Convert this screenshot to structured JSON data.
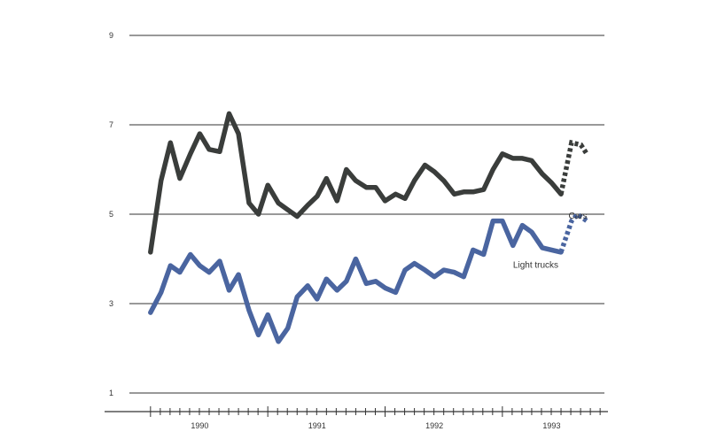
{
  "chart_data": {
    "type": "line",
    "title": "",
    "xlabel": "",
    "ylabel": "",
    "ylim": [
      1,
      9
    ],
    "y_ticks": [
      1,
      3,
      5,
      7,
      9
    ],
    "grid": true,
    "x_range": [
      1989.4,
      1993.45
    ],
    "x_year_labels": [
      {
        "label": "1990",
        "x": 1990.0
      },
      {
        "label": "1991",
        "x": 1991.0
      },
      {
        "label": "1992",
        "x": 1992.0
      },
      {
        "label": "1993",
        "x": 1993.0
      }
    ],
    "series": [
      {
        "name": "Cars",
        "label": "Cars",
        "color": "#3a3d3b",
        "values": [
          [
            1989.58,
            4.15
          ],
          [
            1989.67,
            5.75
          ],
          [
            1989.75,
            6.6
          ],
          [
            1989.83,
            5.8
          ],
          [
            1989.92,
            6.35
          ],
          [
            1990.0,
            6.8
          ],
          [
            1990.08,
            6.45
          ],
          [
            1990.17,
            6.4
          ],
          [
            1990.25,
            7.25
          ],
          [
            1990.33,
            6.8
          ],
          [
            1990.42,
            5.25
          ],
          [
            1990.5,
            5.0
          ],
          [
            1990.58,
            5.65
          ],
          [
            1990.67,
            5.25
          ],
          [
            1990.75,
            5.1
          ],
          [
            1990.83,
            4.95
          ],
          [
            1990.92,
            5.2
          ],
          [
            1991.0,
            5.4
          ],
          [
            1991.08,
            5.8
          ],
          [
            1991.17,
            5.3
          ],
          [
            1991.25,
            6.0
          ],
          [
            1991.33,
            5.75
          ],
          [
            1991.42,
            5.6
          ],
          [
            1991.5,
            5.6
          ],
          [
            1991.58,
            5.3
          ],
          [
            1991.67,
            5.45
          ],
          [
            1991.75,
            5.35
          ],
          [
            1991.83,
            5.75
          ],
          [
            1991.92,
            6.1
          ],
          [
            1992.0,
            5.95
          ],
          [
            1992.08,
            5.75
          ],
          [
            1992.17,
            5.45
          ],
          [
            1992.25,
            5.5
          ],
          [
            1992.33,
            5.5
          ],
          [
            1992.42,
            5.55
          ],
          [
            1992.5,
            6.0
          ],
          [
            1992.58,
            6.35
          ],
          [
            1992.67,
            6.25
          ],
          [
            1992.75,
            6.25
          ],
          [
            1992.83,
            6.2
          ],
          [
            1992.92,
            5.9
          ],
          [
            1993.0,
            5.7
          ],
          [
            1993.08,
            5.45
          ]
        ],
        "forecast": [
          [
            1993.08,
            5.45
          ],
          [
            1993.17,
            6.6
          ],
          [
            1993.25,
            6.55
          ],
          [
            1993.3,
            6.35
          ]
        ]
      },
      {
        "name": "Light trucks",
        "label": "Light trucks",
        "color": "#4a65a0",
        "values": [
          [
            1989.58,
            2.8
          ],
          [
            1989.67,
            3.25
          ],
          [
            1989.75,
            3.85
          ],
          [
            1989.83,
            3.7
          ],
          [
            1989.92,
            4.1
          ],
          [
            1990.0,
            3.85
          ],
          [
            1990.08,
            3.7
          ],
          [
            1990.17,
            3.95
          ],
          [
            1990.25,
            3.3
          ],
          [
            1990.33,
            3.65
          ],
          [
            1990.42,
            2.85
          ],
          [
            1990.5,
            2.3
          ],
          [
            1990.58,
            2.75
          ],
          [
            1990.67,
            2.15
          ],
          [
            1990.75,
            2.45
          ],
          [
            1990.83,
            3.15
          ],
          [
            1990.92,
            3.4
          ],
          [
            1991.0,
            3.1
          ],
          [
            1991.08,
            3.55
          ],
          [
            1991.17,
            3.3
          ],
          [
            1991.25,
            3.5
          ],
          [
            1991.33,
            4.0
          ],
          [
            1991.42,
            3.45
          ],
          [
            1991.5,
            3.5
          ],
          [
            1991.58,
            3.35
          ],
          [
            1991.67,
            3.25
          ],
          [
            1991.75,
            3.75
          ],
          [
            1991.83,
            3.9
          ],
          [
            1991.92,
            3.75
          ],
          [
            1992.0,
            3.6
          ],
          [
            1992.08,
            3.75
          ],
          [
            1992.17,
            3.7
          ],
          [
            1992.25,
            3.6
          ],
          [
            1992.33,
            4.2
          ],
          [
            1992.42,
            4.1
          ],
          [
            1992.5,
            4.85
          ],
          [
            1992.58,
            4.85
          ],
          [
            1992.67,
            4.3
          ],
          [
            1992.75,
            4.75
          ],
          [
            1992.83,
            4.6
          ],
          [
            1992.92,
            4.25
          ],
          [
            1993.0,
            4.2
          ],
          [
            1993.08,
            4.15
          ]
        ],
        "forecast": [
          [
            1993.08,
            4.15
          ],
          [
            1993.17,
            4.85
          ],
          [
            1993.22,
            5.0
          ],
          [
            1993.3,
            4.85
          ]
        ]
      }
    ]
  }
}
